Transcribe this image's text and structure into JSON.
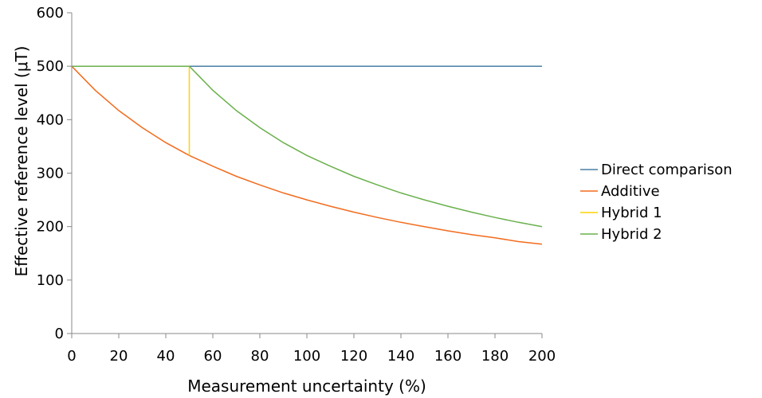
{
  "chart_data": {
    "type": "line",
    "title": "",
    "xlabel": "Measurement uncertainty (%)",
    "ylabel": "Effective reference level (μT)",
    "xlim": [
      0,
      200
    ],
    "ylim": [
      0,
      600
    ],
    "x_ticks": [
      "0",
      "20",
      "40",
      "60",
      "80",
      "100",
      "120",
      "140",
      "160",
      "180",
      "200"
    ],
    "y_ticks": [
      "0",
      "100",
      "200",
      "300",
      "400",
      "500",
      "600"
    ],
    "grid": false,
    "legend_position": "right",
    "series": [
      {
        "name": "Direct comparison",
        "color": "#4a7fa6",
        "x": [
          0,
          200
        ],
        "y": [
          500,
          500
        ]
      },
      {
        "name": "Additive",
        "color": "#f26b1d",
        "x": [
          0,
          10,
          20,
          30,
          40,
          50,
          60,
          70,
          80,
          90,
          100,
          110,
          120,
          130,
          140,
          150,
          160,
          170,
          180,
          190,
          200
        ],
        "y": [
          500,
          455,
          417,
          385,
          357,
          333,
          313,
          294,
          278,
          263,
          250,
          238,
          227,
          217,
          208,
          200,
          192,
          185,
          179,
          172,
          167
        ]
      },
      {
        "name": "Hybrid 1",
        "color": "#ffd200",
        "x": [
          50,
          50
        ],
        "y": [
          500,
          333
        ]
      },
      {
        "name": "Hybrid 2",
        "color": "#6ab04c",
        "x": [
          0,
          50,
          60,
          70,
          80,
          90,
          100,
          110,
          120,
          130,
          140,
          150,
          160,
          170,
          180,
          190,
          200
        ],
        "y": [
          500,
          500,
          455,
          417,
          385,
          357,
          333,
          313,
          294,
          278,
          263,
          250,
          238,
          227,
          217,
          208,
          200
        ]
      }
    ]
  }
}
